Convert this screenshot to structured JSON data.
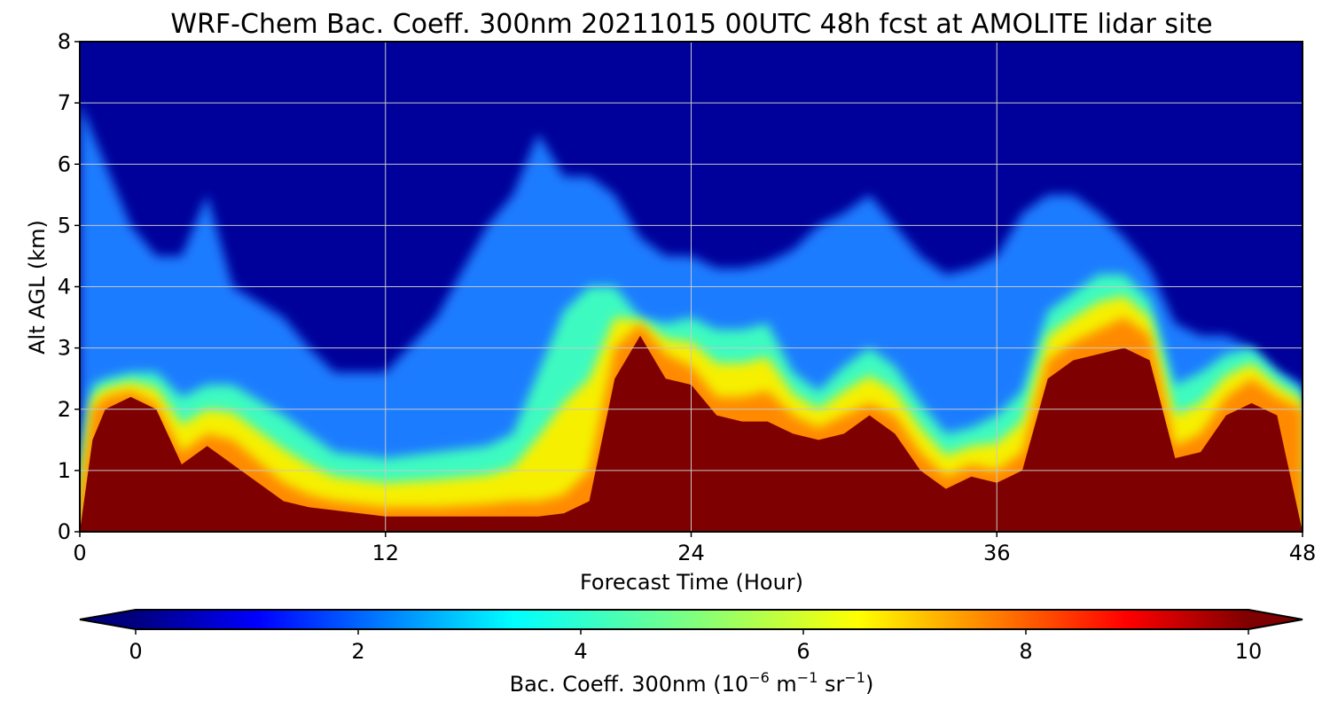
{
  "chart_data": {
    "type": "heatmap",
    "title": "WRF-Chem Bac. Coeff. 300nm  20211015 00UTC 48h fcst at AMOLITE lidar site",
    "xlabel": "Forecast Time (Hour)",
    "ylabel": "Alt AGL (km)",
    "xlim": [
      0,
      48
    ],
    "ylim": [
      0,
      8
    ],
    "x_ticks": [
      "0",
      "12",
      "24",
      "36",
      "48"
    ],
    "y_ticks": [
      "0",
      "1",
      "2",
      "3",
      "4",
      "5",
      "6",
      "7",
      "8"
    ],
    "grid": true,
    "colormap": "jet",
    "colorbar": {
      "label_main": "Bac. Coeff. 300nm  (10",
      "label_exp1": "−6",
      "label_mid": " m",
      "label_exp2": "−1",
      "label_mid2": " sr",
      "label_exp3": "−1",
      "label_end": ")",
      "range": [
        0,
        10
      ],
      "ticks": [
        "0",
        "2",
        "4",
        "6",
        "8",
        "10"
      ],
      "extend": "both",
      "under_color": "#00007f",
      "over_color": "#7f0000"
    },
    "time_hours": [
      0,
      0.5,
      1,
      2,
      3,
      4,
      5,
      6,
      8,
      9,
      10,
      12,
      14,
      16,
      17,
      18,
      19,
      20,
      21,
      22,
      23,
      24,
      25,
      26,
      27,
      28,
      29,
      30,
      31,
      32,
      33,
      34,
      35,
      36,
      37,
      38,
      39,
      40,
      41,
      42,
      43,
      44,
      45,
      46,
      47,
      48
    ],
    "boundary_height_km": {
      "description_levels": [
        "above_10",
        "above_7",
        "above_4",
        "above_2"
      ],
      "above_10": [
        0,
        1.5,
        2.0,
        2.2,
        2.0,
        1.1,
        1.4,
        1.1,
        0.5,
        0.4,
        0.35,
        0.25,
        0.25,
        0.25,
        0.25,
        0.25,
        0.3,
        0.5,
        2.5,
        3.2,
        2.5,
        2.4,
        1.9,
        1.8,
        1.8,
        1.6,
        1.5,
        1.6,
        1.9,
        1.6,
        1.0,
        0.7,
        0.9,
        0.8,
        1.0,
        2.5,
        2.8,
        2.9,
        3.0,
        2.8,
        1.2,
        1.3,
        1.9,
        2.1,
        1.9,
        0
      ],
      "above_7": [
        0.5,
        2.0,
        2.2,
        2.3,
        2.1,
        1.3,
        1.6,
        1.5,
        0.8,
        0.6,
        0.5,
        0.4,
        0.4,
        0.45,
        0.5,
        0.5,
        0.6,
        1.0,
        3.0,
        3.4,
        2.9,
        2.7,
        2.2,
        2.2,
        2.3,
        1.9,
        1.7,
        1.9,
        2.1,
        1.9,
        1.3,
        0.9,
        1.1,
        1.0,
        1.3,
        2.8,
        3.1,
        3.3,
        3.5,
        3.2,
        1.4,
        1.6,
        2.2,
        2.5,
        2.2,
        2.0
      ],
      "above_4": [
        1.0,
        2.4,
        2.5,
        2.6,
        2.6,
        2.2,
        2.4,
        2.4,
        1.9,
        1.6,
        1.3,
        1.2,
        1.3,
        1.4,
        1.6,
        2.6,
        3.6,
        4.0,
        4.0,
        3.5,
        3.4,
        3.5,
        3.3,
        3.3,
        3.4,
        2.6,
        2.3,
        2.7,
        3.0,
        2.7,
        2.1,
        1.6,
        1.7,
        1.9,
        2.3,
        3.6,
        3.9,
        4.2,
        4.2,
        3.8,
        2.4,
        2.6,
        2.9,
        3.0,
        2.6,
        2.3
      ],
      "above_2": [
        7.0,
        6.5,
        6.0,
        5.0,
        4.5,
        4.5,
        5.5,
        4.0,
        3.5,
        3.0,
        2.6,
        2.6,
        3.5,
        5.0,
        5.5,
        6.5,
        5.8,
        5.8,
        5.5,
        4.8,
        4.5,
        4.5,
        4.3,
        4.3,
        4.4,
        4.6,
        5.0,
        5.2,
        5.5,
        5.0,
        4.5,
        4.2,
        4.3,
        4.5,
        5.2,
        5.5,
        5.5,
        5.2,
        4.8,
        4.3,
        3.4,
        3.2,
        3.2,
        3.0,
        2.6,
        2.4
      ]
    }
  }
}
